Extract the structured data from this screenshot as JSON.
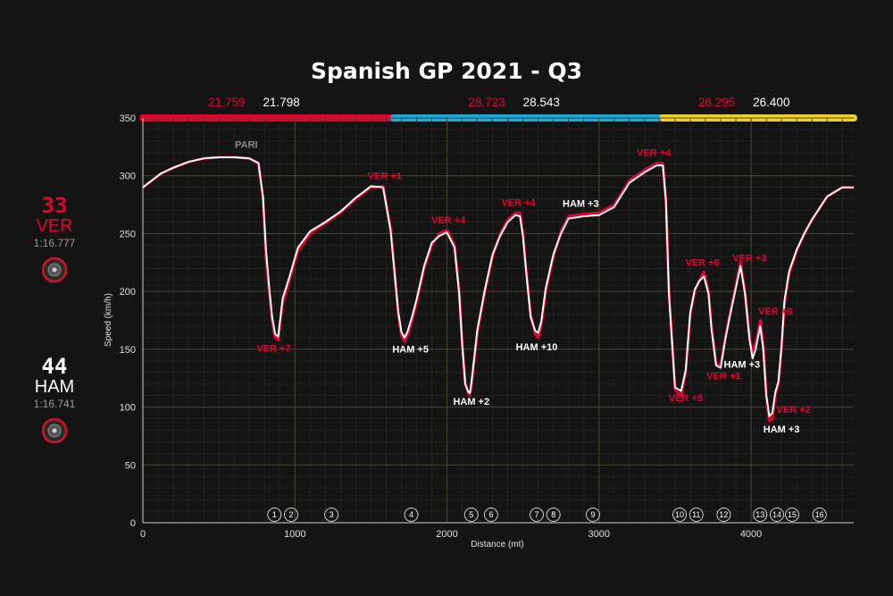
{
  "chart_data": {
    "type": "line",
    "title": "Spanish GP 2021 - Q3",
    "xlabel": "Distance (mt)",
    "ylabel": "Speed (km/h)",
    "xlim": [
      0,
      4675
    ],
    "ylim": [
      0,
      350
    ],
    "x_ticks": [
      0,
      1000,
      2000,
      3000,
      4000
    ],
    "y_ticks": [
      0,
      50,
      100,
      150,
      200,
      250,
      300,
      350
    ],
    "grid": true,
    "sectors": [
      {
        "end": 1650,
        "color": "#e8002d",
        "times": [
          "21.759",
          "21.798"
        ]
      },
      {
        "end": 3420,
        "color": "#1ba8dc",
        "times": [
          "28.723",
          "28.543"
        ]
      },
      {
        "end": 4675,
        "color": "#f2d21f",
        "times": [
          "26.295",
          "26.400"
        ]
      }
    ],
    "series": [
      {
        "name": "VER",
        "color": "#e8002d",
        "x": [
          0,
          50,
          120,
          200,
          300,
          400,
          500,
          600,
          700,
          760,
          790,
          810,
          830,
          850,
          870,
          890,
          920,
          960,
          1020,
          1100,
          1200,
          1300,
          1400,
          1500,
          1580,
          1630,
          1660,
          1680,
          1700,
          1720,
          1740,
          1770,
          1800,
          1850,
          1900,
          1950,
          2000,
          2050,
          2080,
          2100,
          2120,
          2140,
          2150,
          2160,
          2200,
          2250,
          2300,
          2350,
          2400,
          2450,
          2480,
          2500,
          2520,
          2550,
          2580,
          2600,
          2620,
          2650,
          2700,
          2750,
          2800,
          2900,
          3000,
          3100,
          3200,
          3300,
          3380,
          3420,
          3440,
          3460,
          3500,
          3540,
          3570,
          3600,
          3630,
          3660,
          3690,
          3720,
          3740,
          3770,
          3800,
          3830,
          3860,
          3900,
          3930,
          3960,
          3990,
          4010,
          4030,
          4060,
          4080,
          4100,
          4120,
          4140,
          4160,
          4180,
          4200,
          4220,
          4250,
          4300,
          4350,
          4400,
          4500,
          4600,
          4675
        ],
        "y": [
          290,
          295,
          302,
          307,
          312,
          315,
          316,
          316,
          315,
          311,
          280,
          230,
          200,
          175,
          160,
          158,
          190,
          208,
          235,
          250,
          259,
          268,
          280,
          290,
          291,
          255,
          210,
          180,
          162,
          157,
          162,
          175,
          190,
          220,
          240,
          250,
          253,
          240,
          200,
          155,
          120,
          112,
          110,
          118,
          165,
          200,
          230,
          250,
          262,
          268,
          268,
          250,
          220,
          180,
          163,
          160,
          170,
          200,
          230,
          252,
          265,
          267,
          268,
          275,
          296,
          305,
          311,
          311,
          280,
          200,
          115,
          110,
          130,
          180,
          200,
          210,
          217,
          200,
          170,
          138,
          135,
          160,
          180,
          205,
          225,
          200,
          160,
          148,
          155,
          175,
          155,
          110,
          88,
          90,
          110,
          120,
          150,
          190,
          215,
          235,
          250,
          262,
          282,
          290,
          290
        ]
      },
      {
        "name": "HAM",
        "color": "#ffffff",
        "x": [
          0,
          50,
          120,
          200,
          300,
          400,
          500,
          600,
          700,
          760,
          790,
          810,
          830,
          850,
          870,
          890,
          920,
          960,
          1020,
          1100,
          1200,
          1300,
          1400,
          1500,
          1580,
          1630,
          1660,
          1680,
          1700,
          1720,
          1740,
          1770,
          1800,
          1850,
          1900,
          1950,
          2000,
          2050,
          2080,
          2100,
          2120,
          2140,
          2150,
          2160,
          2200,
          2250,
          2300,
          2350,
          2400,
          2450,
          2480,
          2500,
          2520,
          2550,
          2580,
          2600,
          2620,
          2650,
          2700,
          2750,
          2800,
          2900,
          3000,
          3100,
          3200,
          3300,
          3380,
          3420,
          3440,
          3460,
          3500,
          3540,
          3570,
          3600,
          3630,
          3660,
          3690,
          3720,
          3740,
          3770,
          3800,
          3830,
          3860,
          3900,
          3930,
          3960,
          3990,
          4010,
          4030,
          4060,
          4080,
          4100,
          4120,
          4140,
          4160,
          4180,
          4200,
          4220,
          4250,
          4300,
          4350,
          4400,
          4500,
          4600,
          4675
        ],
        "y": [
          290,
          295,
          302,
          307,
          312,
          315,
          316,
          316,
          315,
          311,
          282,
          235,
          205,
          178,
          163,
          161,
          194,
          211,
          238,
          252,
          260,
          269,
          281,
          291,
          290,
          252,
          210,
          182,
          165,
          160,
          165,
          178,
          193,
          222,
          242,
          248,
          251,
          238,
          198,
          154,
          120,
          113,
          112,
          120,
          167,
          202,
          232,
          248,
          260,
          266,
          265,
          247,
          218,
          178,
          166,
          164,
          174,
          203,
          232,
          250,
          263,
          265,
          266,
          273,
          294,
          303,
          309,
          309,
          278,
          198,
          117,
          114,
          132,
          182,
          202,
          209,
          213,
          198,
          167,
          136,
          134,
          158,
          178,
          203,
          222,
          198,
          158,
          142,
          150,
          170,
          150,
          110,
          92,
          95,
          113,
          122,
          152,
          192,
          217,
          236,
          250,
          262,
          282,
          290,
          290
        ]
      }
    ],
    "annotations": [
      {
        "text": "PARI",
        "x": 680,
        "y": 324,
        "color": "#8a8a8a"
      },
      {
        "text": "VER +7",
        "x": 860,
        "y": 148,
        "color": "#e8002d"
      },
      {
        "text": "VER +1",
        "x": 1590,
        "y": 297,
        "color": "#e8002d"
      },
      {
        "text": "HAM +5",
        "x": 1760,
        "y": 147,
        "color": "#ffffff"
      },
      {
        "text": "VER +4",
        "x": 2010,
        "y": 259,
        "color": "#e8002d"
      },
      {
        "text": "HAM +2",
        "x": 2160,
        "y": 102,
        "color": "#ffffff"
      },
      {
        "text": "VER +4",
        "x": 2470,
        "y": 274,
        "color": "#e8002d"
      },
      {
        "text": "HAM +10",
        "x": 2590,
        "y": 149,
        "color": "#ffffff"
      },
      {
        "text": "HAM +3",
        "x": 2880,
        "y": 273,
        "color": "#ffffff"
      },
      {
        "text": "VER +4",
        "x": 3360,
        "y": 317,
        "color": "#e8002d"
      },
      {
        "text": "VER +6",
        "x": 3680,
        "y": 222,
        "color": "#e8002d"
      },
      {
        "text": "VER +3",
        "x": 3990,
        "y": 226,
        "color": "#e8002d"
      },
      {
        "text": "VER +9",
        "x": 4160,
        "y": 180,
        "color": "#e8002d"
      },
      {
        "text": "HAM +3",
        "x": 3940,
        "y": 134,
        "color": "#ffffff"
      },
      {
        "text": "VER +1",
        "x": 3820,
        "y": 124,
        "color": "#e8002d"
      },
      {
        "text": "VER +5",
        "x": 3570,
        "y": 105,
        "color": "#e8002d"
      },
      {
        "text": "VER +2",
        "x": 4280,
        "y": 95,
        "color": "#e8002d"
      },
      {
        "text": "HAM +3",
        "x": 4200,
        "y": 78,
        "color": "#ffffff"
      }
    ],
    "corners": [
      {
        "num": "1",
        "x": 865
      },
      {
        "num": "2",
        "x": 975
      },
      {
        "num": "3",
        "x": 1240
      },
      {
        "num": "4",
        "x": 1765
      },
      {
        "num": "5",
        "x": 2160
      },
      {
        "num": "6",
        "x": 2290
      },
      {
        "num": "7",
        "x": 2590
      },
      {
        "num": "8",
        "x": 2700
      },
      {
        "num": "9",
        "x": 2960
      },
      {
        "num": "10",
        "x": 3530
      },
      {
        "num": "11",
        "x": 3640
      },
      {
        "num": "12",
        "x": 3820
      },
      {
        "num": "13",
        "x": 4060
      },
      {
        "num": "14",
        "x": 4170
      },
      {
        "num": "15",
        "x": 4270
      },
      {
        "num": "16",
        "x": 4450
      }
    ]
  },
  "drivers": [
    {
      "number": "33",
      "code": "VER",
      "laptime": "1:16.777",
      "color": "#e8002d"
    },
    {
      "number": "44",
      "code": "HAM",
      "laptime": "1:16.741",
      "color": "#ffffff"
    }
  ]
}
